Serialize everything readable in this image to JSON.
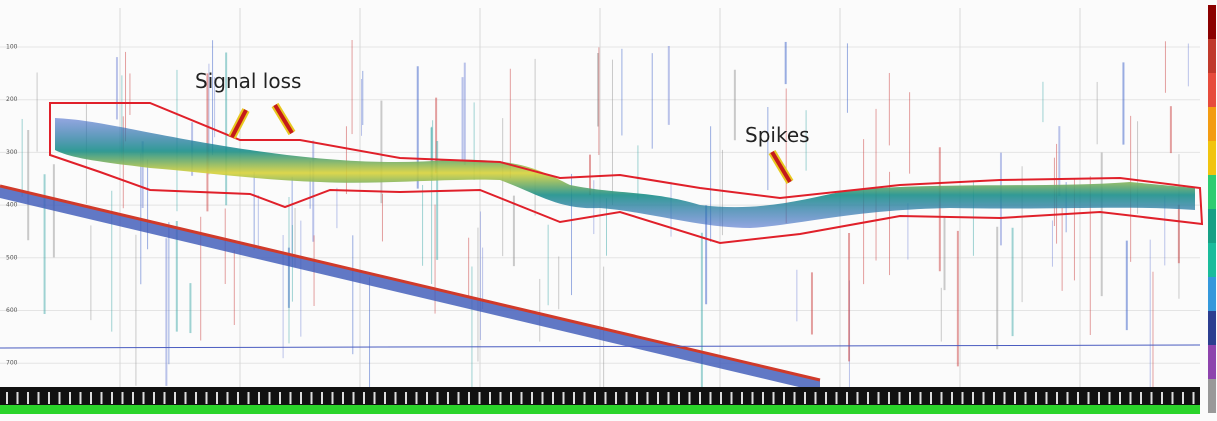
{
  "annotations": {
    "signal_loss": "Signal loss",
    "spikes": "Spikes"
  },
  "depth_labels": [
    "100",
    "200",
    "300",
    "400",
    "500",
    "600",
    "700"
  ]
}
